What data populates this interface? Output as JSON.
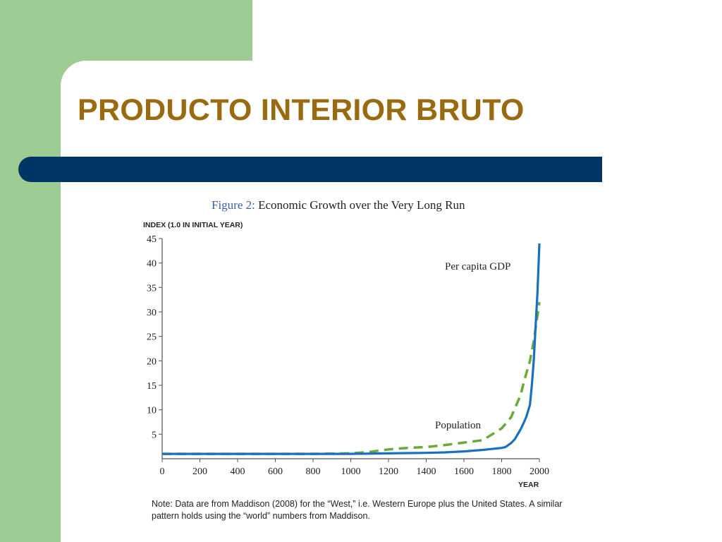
{
  "slide": {
    "title": "PRODUCTO INTERIOR BRUTO",
    "figure_caption_number": "Figure 2:",
    "figure_caption_text": "Economic Growth over the Very Long Run",
    "note": "Note: Data are from Maddison (2008) for the “West,” i.e. Western Europe plus the United States. A similar pattern holds using the “world” numbers from Maddison.",
    "colors": {
      "accent_green": "#9dcc95",
      "title_color": "#9a6a10",
      "bar_navy": "#003567"
    }
  },
  "chart_data": {
    "type": "line",
    "title": "",
    "ylabel": "INDEX (1.0 IN INITIAL YEAR)",
    "xlabel": "YEAR",
    "xlim": [
      0,
      2000
    ],
    "ylim": [
      0,
      45
    ],
    "x_ticks": [
      "0",
      "200",
      "400",
      "600",
      "800",
      "1000",
      "1200",
      "1400",
      "1600",
      "1800",
      "2000"
    ],
    "y_ticks": [
      "5",
      "10",
      "15",
      "20",
      "25",
      "30",
      "35",
      "40",
      "45"
    ],
    "grid": false,
    "legend": "inline labels",
    "series": [
      {
        "name": "Per capita GDP",
        "style": "solid",
        "color": "#1a6fbf",
        "x": [
          0,
          200,
          400,
          600,
          800,
          1000,
          1200,
          1400,
          1500,
          1600,
          1700,
          1800,
          1820,
          1850,
          1870,
          1900,
          1913,
          1930,
          1950,
          1960,
          1970,
          1980,
          1990,
          2000
        ],
        "y": [
          1,
          1,
          1,
          1,
          1,
          1,
          1.1,
          1.2,
          1.3,
          1.5,
          1.8,
          2.2,
          2.4,
          3.2,
          4,
          6,
          7,
          8.5,
          11,
          15,
          20,
          27,
          34,
          44
        ]
      },
      {
        "name": "Population",
        "style": "dashed",
        "color": "#6aaa3a",
        "x": [
          0,
          200,
          400,
          600,
          800,
          1000,
          1100,
          1200,
          1300,
          1400,
          1500,
          1600,
          1700,
          1800,
          1850,
          1900,
          1920,
          1950,
          1970,
          2000
        ],
        "y": [
          1,
          1,
          1,
          1,
          1,
          1.1,
          1.4,
          1.9,
          2.2,
          2.4,
          2.8,
          3.3,
          3.8,
          6.2,
          8.5,
          13,
          16,
          20,
          24,
          32
        ]
      }
    ]
  }
}
